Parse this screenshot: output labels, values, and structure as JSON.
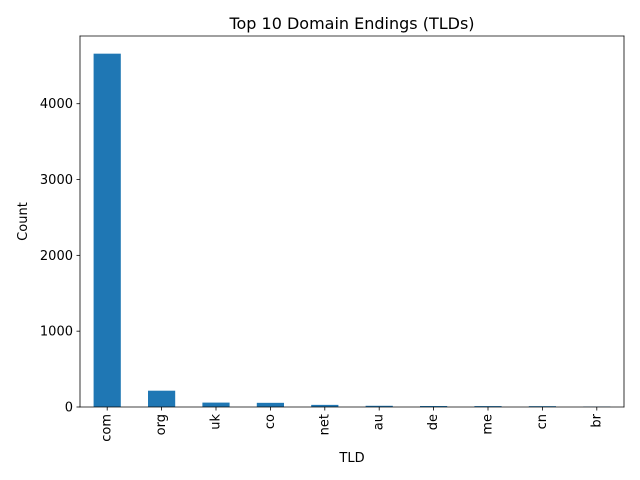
{
  "chart_data": {
    "type": "bar",
    "title": "Top 10 Domain Endings (TLDs)",
    "xlabel": "TLD",
    "ylabel": "Count",
    "categories": [
      "com",
      "org",
      "uk",
      "co",
      "net",
      "au",
      "de",
      "me",
      "cn",
      "br"
    ],
    "values": [
      4660,
      215,
      58,
      55,
      28,
      16,
      13,
      12,
      11,
      5
    ],
    "ylim": [
      0,
      4893
    ],
    "yticks": [
      0,
      1000,
      2000,
      3000,
      4000
    ],
    "ytick_labels": [
      "0",
      "1000",
      "2000",
      "3000",
      "4000"
    ],
    "bar_color": "#1f77b4",
    "grid": false,
    "legend": "none"
  }
}
